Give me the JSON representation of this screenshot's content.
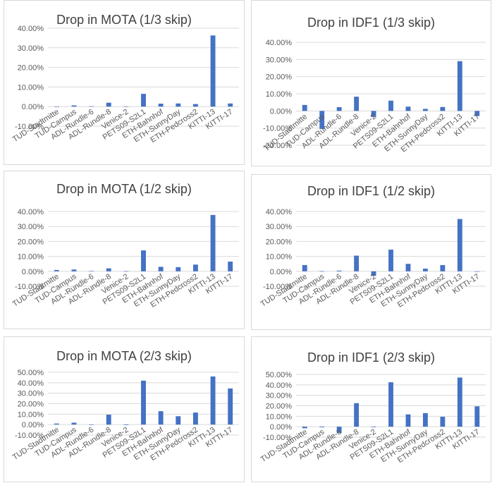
{
  "chart_data": [
    {
      "type": "bar",
      "title": "Drop in MOTA (1/3 skip)",
      "categories": [
        "TUD-Stadtmitte",
        "TUD-Campus",
        "ADL-Rundle-6",
        "ADL-Rundle-8",
        "Venice-2",
        "PETS09-S2L1",
        "ETH-Bahnhof",
        "ETH-SunnyDay",
        "ETH-Pedcross2",
        "KITTI-13",
        "KITTI-17"
      ],
      "series": [
        {
          "values": [
            0.0,
            0.6,
            0.2,
            2.0,
            0.1,
            6.5,
            1.5,
            1.6,
            1.3,
            36.3,
            1.6
          ]
        }
      ],
      "yticks": [
        "-10.00%",
        "0.00%",
        "10.00%",
        "20.00%",
        "30.00%",
        "40.00%"
      ],
      "ylim": [
        -10,
        40
      ],
      "bar_color": "#4472c4",
      "grid": true
    },
    {
      "type": "bar",
      "title": "Drop in IDF1 (1/3 skip)",
      "categories": [
        "TUD-Stadtmitte",
        "TUD-Campus",
        "ADL-Rundle-6",
        "ADL-Rundle-8",
        "Venice-2",
        "PETS09-S2L1",
        "ETH-Bahnhof",
        "ETH-SunnyDay",
        "ETH-Pedcross2",
        "KITTI-13",
        "KITTI-17"
      ],
      "series": [
        {
          "values": [
            3.5,
            -10.5,
            2.2,
            8.3,
            -3.5,
            6.0,
            2.5,
            1.2,
            2.3,
            29.0,
            -3.0
          ]
        }
      ],
      "yticks": [
        "-20.00%",
        "-10.00%",
        "0.00%",
        "10.00%",
        "20.00%",
        "30.00%",
        "40.00%"
      ],
      "ylim": [
        -20,
        40
      ],
      "bar_color": "#4472c4",
      "grid": true
    },
    {
      "type": "bar",
      "title": "Drop in MOTA (1/2 skip)",
      "categories": [
        "TUD-Stadtmitte",
        "TUD-Campus",
        "ADL-Rundle-6",
        "ADL-Rundle-8",
        "Venice-2",
        "PETS09-S2L1",
        "ETH-Bahnhof",
        "ETH-SunnyDay",
        "ETH-Pedcross2",
        "KITTI-13",
        "KITTI-17"
      ],
      "series": [
        {
          "values": [
            0.9,
            1.2,
            0.2,
            2.0,
            0.1,
            14.0,
            3.0,
            2.8,
            4.5,
            37.7,
            6.5
          ]
        }
      ],
      "yticks": [
        "-10.00%",
        "0.00%",
        "10.00%",
        "20.00%",
        "30.00%",
        "40.00%"
      ],
      "ylim": [
        -10,
        40
      ],
      "bar_color": "#4472c4",
      "grid": true
    },
    {
      "type": "bar",
      "title": "Drop in IDF1 (1/2 skip)",
      "categories": [
        "TUD-Stadtmitte",
        "TUD-Campus",
        "ADL-Rundle-6",
        "ADL-Rundle-8",
        "Venice-2",
        "PETS09-S2L1",
        "ETH-Bahnhof",
        "ETH-SunnyDay",
        "ETH-Pedcross2",
        "KITTI-13",
        "KITTI-17"
      ],
      "series": [
        {
          "values": [
            4.2,
            0.1,
            0.5,
            10.5,
            -3.0,
            14.5,
            5.0,
            1.8,
            4.2,
            35.0,
            0.0
          ]
        }
      ],
      "yticks": [
        "-10.00%",
        "0.00%",
        "10.00%",
        "20.00%",
        "30.00%",
        "40.00%"
      ],
      "ylim": [
        -10,
        40
      ],
      "bar_color": "#4472c4",
      "grid": true
    },
    {
      "type": "bar",
      "title": "Drop in MOTA (2/3 skip)",
      "categories": [
        "TUD-Stadtmitte",
        "TUD-Campus",
        "ADL-Rundle-6",
        "ADL-Rundle-8",
        "Venice-2",
        "PETS09-S2L1",
        "ETH-Bahnhof",
        "ETH-SunnyDay",
        "ETH-Pedcross2",
        "KITTI-13",
        "KITTI-17"
      ],
      "series": [
        {
          "values": [
            1.0,
            1.8,
            0.0,
            9.5,
            -0.5,
            42.0,
            12.8,
            8.0,
            11.5,
            46.0,
            34.5
          ]
        }
      ],
      "yticks": [
        "-10.00%",
        "0.00%",
        "10.00%",
        "20.00%",
        "30.00%",
        "40.00%",
        "50.00%"
      ],
      "ylim": [
        -10,
        50
      ],
      "bar_color": "#4472c4",
      "grid": true
    },
    {
      "type": "bar",
      "title": "Drop in IDF1 (2/3 skip)",
      "categories": [
        "TUD-Stadtmitte",
        "TUD-Campus",
        "ADL-Rundle-6",
        "ADL-Rundle-8",
        "Venice-2",
        "PETS09-S2L1",
        "ETH-Bahnhof",
        "ETH-SunnyDay",
        "ETH-Pedcross2",
        "KITTI-13",
        "KITTI-17"
      ],
      "series": [
        {
          "values": [
            -1.5,
            -0.6,
            -6.0,
            22.5,
            -0.5,
            42.5,
            11.8,
            13.0,
            9.5,
            47.0,
            19.5
          ]
        }
      ],
      "yticks": [
        "-10.00%",
        "0.00%",
        "10.00%",
        "20.00%",
        "30.00%",
        "40.00%",
        "50.00%"
      ],
      "ylim": [
        -10,
        50
      ],
      "bar_color": "#4472c4",
      "grid": true
    }
  ]
}
